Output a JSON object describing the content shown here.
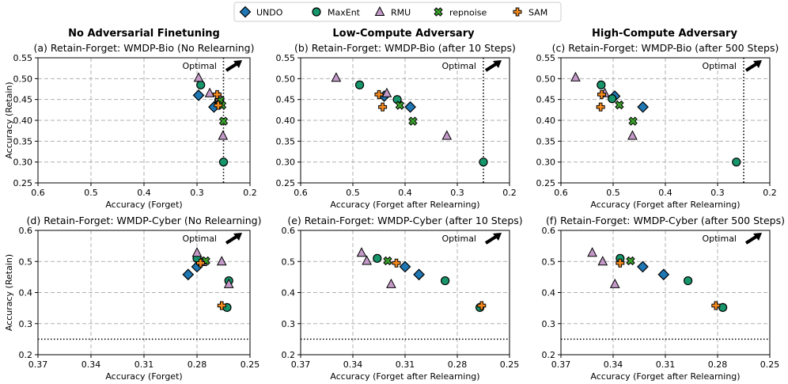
{
  "legend": [
    {
      "name": "UNDO",
      "marker": "diamond",
      "color": "#1f77b4"
    },
    {
      "name": "MaxEnt",
      "marker": "circle",
      "color": "#17956b"
    },
    {
      "name": "RMU",
      "marker": "triangle",
      "color": "#c399c8"
    },
    {
      "name": "repnoise",
      "marker": "x",
      "color": "#3aa02c"
    },
    {
      "name": "SAM",
      "marker": "plus",
      "color": "#f58a1f"
    }
  ],
  "column_titles": [
    "No Adversarial Finetuning",
    "Low-Compute Adversary",
    "High-Compute Adversary"
  ],
  "optimal_label": "Optimal",
  "chart_data": [
    {
      "type": "scatter",
      "title": "(a) Retain-Forget: WMDP-Bio (No Relearning)",
      "xlabel": "Accuracy (Forget)",
      "ylabel": "Accuracy (Retain)",
      "xlim": [
        0.6,
        0.2
      ],
      "ylim": [
        0.25,
        0.55
      ],
      "xticks": [
        "0.6",
        "0.5",
        "0.4",
        "0.3",
        "0.2"
      ],
      "yticks": [
        "0.25",
        "0.30",
        "0.35",
        "0.40",
        "0.45",
        "0.50",
        "0.55"
      ],
      "optimal_x": 0.25,
      "optimal_y": null,
      "grid": true,
      "series": [
        {
          "name": "UNDO",
          "points": [
            [
              0.297,
              0.46
            ],
            [
              0.268,
              0.432
            ]
          ]
        },
        {
          "name": "MaxEnt",
          "points": [
            [
              0.293,
              0.485
            ],
            [
              0.259,
              0.448
            ],
            [
              0.25,
              0.3
            ]
          ]
        },
        {
          "name": "RMU",
          "points": [
            [
              0.297,
              0.502
            ],
            [
              0.276,
              0.465
            ],
            [
              0.258,
              0.455
            ],
            [
              0.251,
              0.363
            ]
          ]
        },
        {
          "name": "repnoise",
          "points": [
            [
              0.256,
              0.448
            ],
            [
              0.253,
              0.436
            ],
            [
              0.25,
              0.398
            ]
          ]
        },
        {
          "name": "SAM",
          "points": [
            [
              0.262,
              0.462
            ],
            [
              0.26,
              0.436
            ]
          ]
        }
      ]
    },
    {
      "type": "scatter",
      "title": "(b) Retain-Forget: WMDP-Bio (after 10 Steps)",
      "xlabel": "Accuracy (Forget after Relearning)",
      "ylabel": "",
      "xlim": [
        0.6,
        0.2
      ],
      "ylim": [
        0.25,
        0.55
      ],
      "xticks": [
        "0.6",
        "0.5",
        "0.4",
        "0.3",
        "0.2"
      ],
      "yticks": [
        "0.25",
        "0.30",
        "0.35",
        "0.40",
        "0.45",
        "0.50",
        "0.55"
      ],
      "optimal_x": 0.25,
      "optimal_y": null,
      "grid": true,
      "series": [
        {
          "name": "UNDO",
          "points": [
            [
              0.44,
              0.458
            ],
            [
              0.39,
              0.432
            ]
          ]
        },
        {
          "name": "MaxEnt",
          "points": [
            [
              0.487,
              0.485
            ],
            [
              0.415,
              0.45
            ],
            [
              0.25,
              0.3
            ]
          ]
        },
        {
          "name": "RMU",
          "points": [
            [
              0.532,
              0.502
            ],
            [
              0.435,
              0.465
            ],
            [
              0.32,
              0.363
            ]
          ]
        },
        {
          "name": "repnoise",
          "points": [
            [
              0.41,
              0.436
            ],
            [
              0.385,
              0.398
            ]
          ]
        },
        {
          "name": "SAM",
          "points": [
            [
              0.45,
              0.462
            ],
            [
              0.443,
              0.432
            ]
          ]
        }
      ]
    },
    {
      "type": "scatter",
      "title": "(c) Retain-Forget: WMDP-Bio (after 500 Steps)",
      "xlabel": "Accuracy (Forget after Relearning)",
      "ylabel": "",
      "xlim": [
        0.6,
        0.2
      ],
      "ylim": [
        0.25,
        0.55
      ],
      "xticks": [
        "0.6",
        "0.5",
        "0.4",
        "0.3",
        "0.2"
      ],
      "yticks": [
        "0.25",
        "0.30",
        "0.35",
        "0.40",
        "0.45",
        "0.50",
        "0.55"
      ],
      "optimal_x": 0.25,
      "optimal_y": null,
      "grid": true,
      "series": [
        {
          "name": "UNDO",
          "points": [
            [
              0.497,
              0.458
            ],
            [
              0.443,
              0.432
            ]
          ]
        },
        {
          "name": "MaxEnt",
          "points": [
            [
              0.523,
              0.485
            ],
            [
              0.502,
              0.452
            ],
            [
              0.264,
              0.3
            ]
          ]
        },
        {
          "name": "RMU",
          "points": [
            [
              0.572,
              0.503
            ],
            [
              0.516,
              0.465
            ],
            [
              0.463,
              0.363
            ]
          ]
        },
        {
          "name": "repnoise",
          "points": [
            [
              0.488,
              0.437
            ],
            [
              0.462,
              0.398
            ]
          ]
        },
        {
          "name": "SAM",
          "points": [
            [
              0.522,
              0.462
            ],
            [
              0.524,
              0.432
            ]
          ]
        }
      ]
    },
    {
      "type": "scatter",
      "title": "(d) Retain-Forget: WMDP-Cyber (No Relearning)",
      "xlabel": "Accuracy (Forget)",
      "ylabel": "Accuracy (Retain)",
      "xlim": [
        0.37,
        0.25
      ],
      "ylim": [
        0.2,
        0.6
      ],
      "xticks": [
        "0.37",
        "0.34",
        "0.31",
        "0.28",
        "0.25"
      ],
      "yticks": [
        "0.2",
        "0.3",
        "0.4",
        "0.5",
        "0.6"
      ],
      "optimal_x": null,
      "optimal_y": 0.25,
      "grid": true,
      "series": [
        {
          "name": "UNDO",
          "points": [
            [
              0.285,
              0.458
            ],
            [
              0.28,
              0.483
            ]
          ]
        },
        {
          "name": "MaxEnt",
          "points": [
            [
              0.28,
              0.51
            ],
            [
              0.262,
              0.438
            ],
            [
              0.263,
              0.352
            ]
          ]
        },
        {
          "name": "RMU",
          "points": [
            [
              0.28,
              0.528
            ],
            [
              0.277,
              0.498
            ],
            [
              0.266,
              0.5
            ],
            [
              0.262,
              0.427
            ]
          ]
        },
        {
          "name": "repnoise",
          "points": [
            [
              0.275,
              0.502
            ]
          ]
        },
        {
          "name": "SAM",
          "points": [
            [
              0.278,
              0.495
            ],
            [
              0.266,
              0.358
            ]
          ]
        }
      ]
    },
    {
      "type": "scatter",
      "title": "(e) Retain-Forget: WMDP-Cyber (after 10 Steps)",
      "xlabel": "Accuracy (Forget after Relearning)",
      "ylabel": "",
      "xlim": [
        0.37,
        0.25
      ],
      "ylim": [
        0.2,
        0.6
      ],
      "xticks": [
        "0.37",
        "0.34",
        "0.31",
        "0.28",
        "0.25"
      ],
      "yticks": [
        "0.2",
        "0.3",
        "0.4",
        "0.5",
        "0.6"
      ],
      "optimal_x": null,
      "optimal_y": 0.25,
      "grid": true,
      "series": [
        {
          "name": "UNDO",
          "points": [
            [
              0.31,
              0.483
            ],
            [
              0.302,
              0.458
            ]
          ]
        },
        {
          "name": "MaxEnt",
          "points": [
            [
              0.326,
              0.51
            ],
            [
              0.287,
              0.438
            ],
            [
              0.267,
              0.352
            ]
          ]
        },
        {
          "name": "RMU",
          "points": [
            [
              0.335,
              0.528
            ],
            [
              0.332,
              0.502
            ],
            [
              0.318,
              0.427
            ]
          ]
        },
        {
          "name": "repnoise",
          "points": [
            [
              0.32,
              0.502
            ]
          ]
        },
        {
          "name": "SAM",
          "points": [
            [
              0.315,
              0.495
            ],
            [
              0.266,
              0.358
            ]
          ]
        }
      ]
    },
    {
      "type": "scatter",
      "title": "(f) Retain-Forget: WMDP-Cyber (after 500 Steps)",
      "xlabel": "Accuracy (Forget after Relearning)",
      "ylabel": "",
      "xlim": [
        0.37,
        0.25
      ],
      "ylim": [
        0.2,
        0.6
      ],
      "xticks": [
        "0.37",
        "0.34",
        "0.31",
        "0.28",
        "0.25"
      ],
      "yticks": [
        "0.2",
        "0.3",
        "0.4",
        "0.5",
        "0.6"
      ],
      "optimal_x": null,
      "optimal_y": 0.25,
      "grid": true,
      "series": [
        {
          "name": "UNDO",
          "points": [
            [
              0.323,
              0.483
            ],
            [
              0.311,
              0.458
            ]
          ]
        },
        {
          "name": "MaxEnt",
          "points": [
            [
              0.336,
              0.51
            ],
            [
              0.297,
              0.438
            ],
            [
              0.277,
              0.352
            ]
          ]
        },
        {
          "name": "RMU",
          "points": [
            [
              0.352,
              0.528
            ],
            [
              0.346,
              0.5
            ],
            [
              0.339,
              0.427
            ]
          ]
        },
        {
          "name": "repnoise",
          "points": [
            [
              0.33,
              0.502
            ]
          ]
        },
        {
          "name": "SAM",
          "points": [
            [
              0.336,
              0.495
            ],
            [
              0.281,
              0.358
            ]
          ]
        }
      ]
    }
  ]
}
